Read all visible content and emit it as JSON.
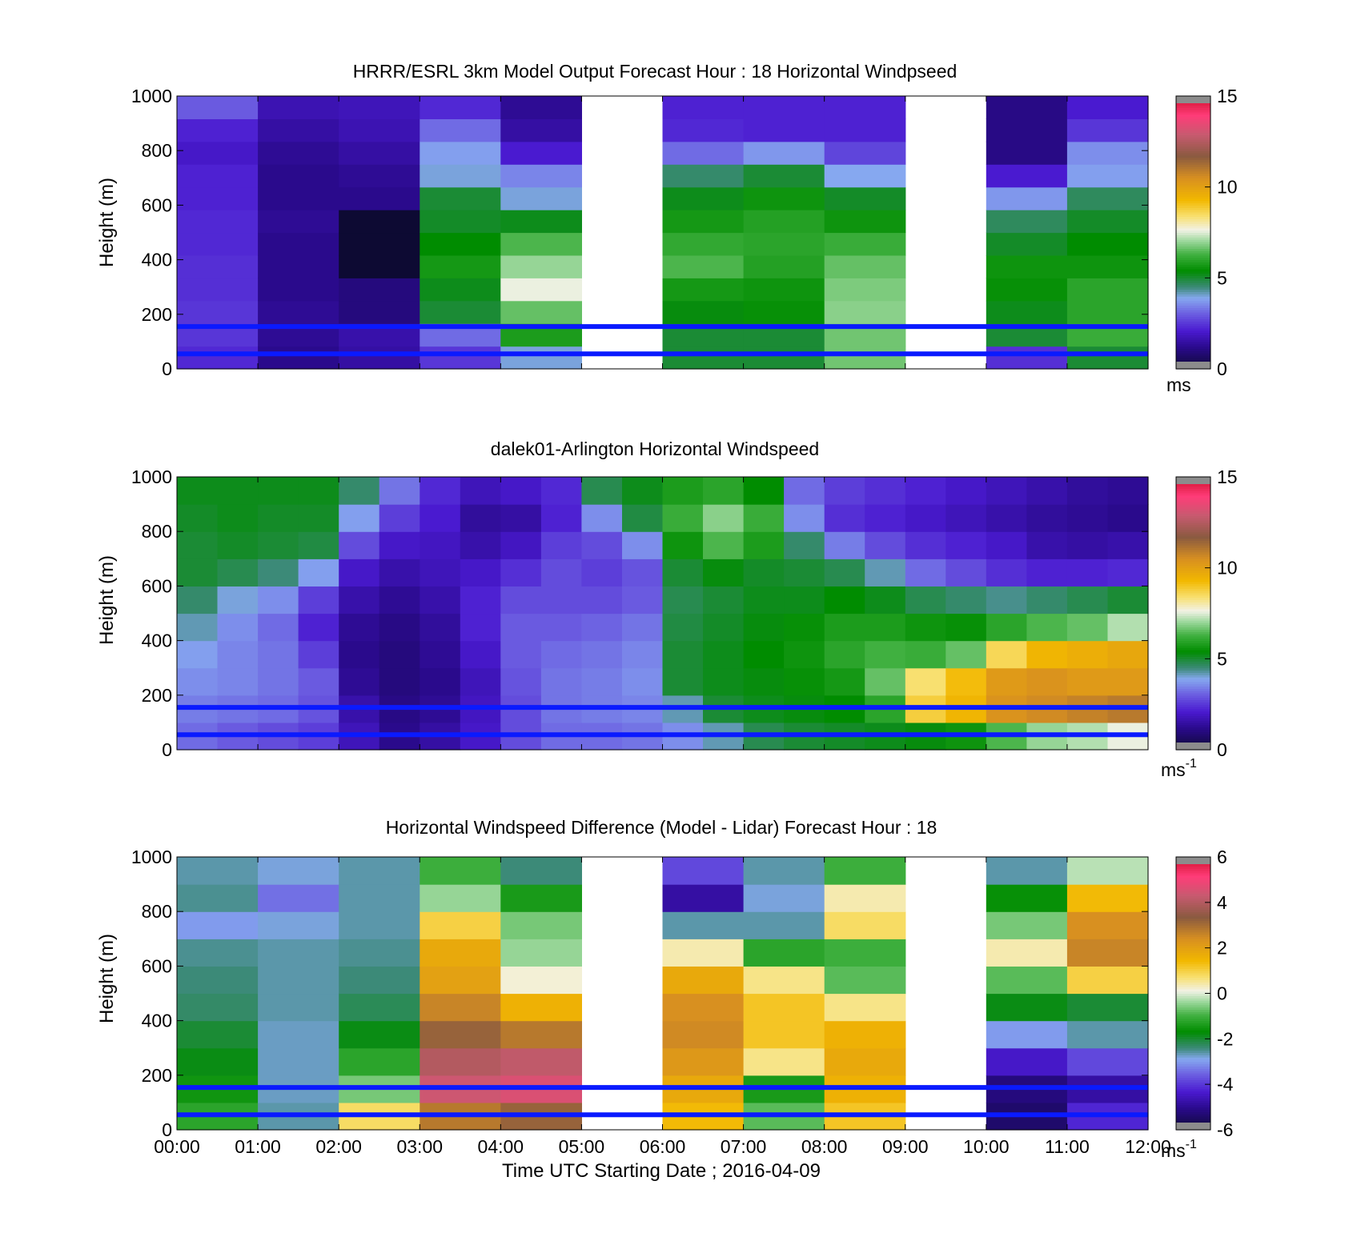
{
  "figure": {
    "xlabel": "Time UTC  Starting Date ; 2016-04-09",
    "x_ticks": [
      "00:00",
      "01:00",
      "02:00",
      "03:00",
      "04:00",
      "05:00",
      "06:00",
      "07:00",
      "08:00",
      "09:00",
      "10:00",
      "11:00",
      "12:00"
    ]
  },
  "chart_data": [
    {
      "type": "heatmap",
      "title": "HRRR/ESRL 3km Model Output   Forecast Hour : 18 Horizontal Windpseed",
      "ylabel": "Height (m)",
      "ylim": [
        0,
        1000
      ],
      "y_ticks": [
        "0",
        "200",
        "400",
        "600",
        "800",
        "1000"
      ],
      "xlim_hours": [
        0,
        12
      ],
      "colorbar": {
        "min": 0,
        "max": 15,
        "ticks": [
          "0",
          "5",
          "10",
          "15"
        ],
        "unit_label": "ms",
        "unit_sup": ""
      },
      "reference_lines_m": [
        55,
        155
      ],
      "missing_hours": [
        5,
        9
      ],
      "columns": [
        {
          "time": "00:00",
          "values": [
            2.3,
            2.5,
            2.5,
            2.4,
            2.4,
            2.3,
            2.3,
            2.2,
            2.2,
            2.0,
            2.2,
            3.0
          ]
        },
        {
          "time": "01:00",
          "values": [
            1.2,
            1.3,
            1.3,
            1.2,
            1.2,
            1.2,
            1.3,
            1.2,
            1.2,
            1.3,
            1.5,
            1.7
          ]
        },
        {
          "time": "02:00",
          "values": [
            1.5,
            1.6,
            1.0,
            1.0,
            0.0,
            0.0,
            0.0,
            1.2,
            1.3,
            1.5,
            1.7,
            1.8
          ]
        },
        {
          "time": "03:00",
          "values": [
            2.5,
            3.2,
            5.0,
            5.2,
            5.7,
            5.4,
            5.1,
            5.0,
            4.0,
            3.8,
            3.2,
            2.3
          ]
        },
        {
          "time": "04:00",
          "values": [
            4.0,
            5.8,
            6.6,
            7.6,
            7.0,
            6.4,
            5.2,
            4.0,
            3.5,
            2.1,
            1.5,
            1.3
          ]
        },
        {
          "time": "06:00",
          "values": [
            5.0,
            5.0,
            5.3,
            5.7,
            6.4,
            6.1,
            5.7,
            5.2,
            4.6,
            3.2,
            2.3,
            2.2
          ]
        },
        {
          "time": "07:00",
          "values": [
            5.0,
            5.0,
            5.5,
            5.6,
            5.9,
            6.0,
            5.9,
            5.6,
            5.0,
            3.7,
            2.2,
            2.2
          ]
        },
        {
          "time": "08:00",
          "values": [
            6.7,
            6.7,
            6.9,
            6.8,
            6.6,
            6.2,
            5.6,
            5.1,
            3.9,
            2.7,
            2.2,
            2.2
          ]
        },
        {
          "time": "10:00",
          "values": [
            2.4,
            5.0,
            5.2,
            5.5,
            5.6,
            5.1,
            4.7,
            3.7,
            2.1,
            1.1,
            1.1,
            1.1
          ]
        },
        {
          "time": "11:00",
          "values": [
            5.0,
            6.2,
            6.0,
            6.0,
            5.6,
            5.4,
            5.1,
            4.7,
            3.8,
            3.6,
            2.5,
            2.1
          ]
        }
      ]
    },
    {
      "type": "heatmap",
      "title": "dalek01-Arlington  Horizontal Windspeed",
      "ylabel": "Height (m)",
      "ylim": [
        0,
        1000
      ],
      "y_ticks": [
        "0",
        "200",
        "400",
        "600",
        "800",
        "1000"
      ],
      "xlim_hours": [
        0,
        12
      ],
      "colorbar": {
        "min": 0,
        "max": 15,
        "ticks": [
          "0",
          "5",
          "10",
          "15"
        ],
        "unit_label": "ms",
        "unit_sup": "-1"
      },
      "reference_lines_m": [
        55,
        155
      ],
      "columns": [
        {
          "time": "00:00",
          "values": [
            3.2,
            3.4,
            3.6,
            3.8,
            4.2,
            4.6,
            5.0,
            5.0,
            5.1,
            5.2
          ]
        },
        {
          "time": "00:30",
          "values": [
            3.0,
            3.3,
            3.5,
            3.5,
            3.6,
            4.0,
            4.8,
            5.1,
            5.2,
            5.2
          ]
        },
        {
          "time": "01:00",
          "values": [
            2.8,
            3.2,
            3.3,
            3.3,
            3.2,
            3.6,
            4.5,
            5.0,
            5.1,
            5.2
          ]
        },
        {
          "time": "01:30",
          "values": [
            2.6,
            2.9,
            3.0,
            2.6,
            2.2,
            2.6,
            3.8,
            4.9,
            5.1,
            5.2
          ]
        },
        {
          "time": "02:00",
          "values": [
            1.8,
            1.6,
            1.3,
            1.2,
            1.3,
            1.6,
            2.0,
            2.8,
            3.8,
            4.6
          ]
        },
        {
          "time": "02:30",
          "values": [
            1.2,
            1.1,
            1.0,
            1.0,
            1.1,
            1.3,
            1.6,
            2.0,
            2.6,
            3.3
          ]
        },
        {
          "time": "03:00",
          "values": [
            1.5,
            1.3,
            1.2,
            1.3,
            1.4,
            1.6,
            1.8,
            1.9,
            2.1,
            2.3
          ]
        },
        {
          "time": "03:30",
          "values": [
            2.0,
            1.9,
            1.8,
            2.0,
            2.2,
            2.2,
            2.0,
            1.6,
            1.4,
            1.8
          ]
        },
        {
          "time": "04:00",
          "values": [
            2.8,
            2.8,
            2.9,
            3.0,
            3.0,
            2.8,
            2.4,
            1.9,
            1.5,
            2.0
          ]
        },
        {
          "time": "04:30",
          "values": [
            3.2,
            3.3,
            3.3,
            3.2,
            3.0,
            2.8,
            2.8,
            2.6,
            2.2,
            2.3
          ]
        },
        {
          "time": "05:00",
          "values": [
            3.2,
            3.4,
            3.4,
            3.3,
            3.1,
            2.8,
            2.6,
            2.8,
            3.6,
            4.8
          ]
        },
        {
          "time": "05:30",
          "values": [
            3.3,
            3.5,
            3.6,
            3.5,
            3.3,
            3.0,
            2.9,
            3.6,
            4.9,
            5.2
          ]
        },
        {
          "time": "06:00",
          "values": [
            3.6,
            4.2,
            5.0,
            5.0,
            4.9,
            4.8,
            5.0,
            5.6,
            6.2,
            5.8
          ]
        },
        {
          "time": "06:30",
          "values": [
            4.2,
            5.0,
            5.2,
            5.2,
            5.1,
            5.0,
            5.3,
            6.4,
            6.9,
            6.0
          ]
        },
        {
          "time": "07:00",
          "values": [
            4.8,
            5.2,
            5.3,
            5.4,
            5.3,
            5.2,
            5.1,
            5.8,
            6.2,
            5.4
          ]
        },
        {
          "time": "07:30",
          "values": [
            5.0,
            5.3,
            5.5,
            5.6,
            5.5,
            5.2,
            5.0,
            4.6,
            3.6,
            3.2
          ]
        },
        {
          "time": "08:00",
          "values": [
            5.1,
            5.4,
            5.7,
            6.0,
            5.8,
            5.4,
            4.8,
            3.4,
            2.4,
            2.6
          ]
        },
        {
          "time": "08:30",
          "values": [
            5.2,
            6.0,
            6.6,
            6.3,
            5.8,
            5.2,
            4.2,
            2.8,
            2.2,
            2.4
          ]
        },
        {
          "time": "09:00",
          "values": [
            5.3,
            8.8,
            8.4,
            6.2,
            5.6,
            4.8,
            3.2,
            2.4,
            2.0,
            2.2
          ]
        },
        {
          "time": "09:30",
          "values": [
            5.6,
            9.4,
            9.2,
            6.6,
            5.5,
            4.6,
            2.8,
            2.2,
            1.8,
            2.0
          ]
        },
        {
          "time": "10:00",
          "values": [
            6.4,
            10.4,
            10.2,
            8.6,
            6.0,
            4.4,
            2.4,
            2.0,
            1.6,
            1.8
          ]
        },
        {
          "time": "10:30",
          "values": [
            7.0,
            10.6,
            10.4,
            9.4,
            6.4,
            4.6,
            2.2,
            1.6,
            1.4,
            1.6
          ]
        },
        {
          "time": "11:00",
          "values": [
            7.2,
            10.8,
            10.2,
            9.6,
            6.6,
            4.8,
            2.2,
            1.5,
            1.3,
            1.4
          ]
        },
        {
          "time": "11:30",
          "values": [
            7.6,
            11.0,
            10.2,
            9.8,
            7.2,
            5.0,
            2.3,
            1.6,
            1.2,
            1.3
          ]
        }
      ]
    },
    {
      "type": "heatmap",
      "title": "Horizontal Windspeed Difference (Model - Lidar) Forecast Hour : 18",
      "ylabel": "Height (m)",
      "ylim": [
        0,
        1000
      ],
      "y_ticks": [
        "0",
        "200",
        "400",
        "600",
        "800",
        "1000"
      ],
      "xlim_hours": [
        0,
        12
      ],
      "colorbar": {
        "min": -6,
        "max": 6,
        "ticks": [
          "-6",
          "-4",
          "-2",
          "0",
          "2",
          "4",
          "6"
        ],
        "unit_label": "ms",
        "unit_sup": "-1"
      },
      "reference_lines_m": [
        55,
        155
      ],
      "missing_hours": [
        5,
        9
      ],
      "columns": [
        {
          "time": "00:00",
          "values": [
            -1.2,
            -1.5,
            -1.8,
            -2.0,
            -2.3,
            -2.4,
            -2.5,
            -3.0,
            -2.5,
            -2.6
          ]
        },
        {
          "time": "01:00",
          "values": [
            -2.6,
            -2.7,
            -2.7,
            -2.7,
            -2.6,
            -2.6,
            -2.6,
            -2.8,
            -3.4,
            -2.8
          ]
        },
        {
          "time": "02:00",
          "values": [
            0.8,
            -0.6,
            -1.2,
            -1.8,
            -2.2,
            -2.4,
            -2.5,
            -2.6,
            -2.6,
            -2.6
          ]
        },
        {
          "time": "03:00",
          "values": [
            2.8,
            4.4,
            4.0,
            3.2,
            2.6,
            2.0,
            1.8,
            1.0,
            -0.4,
            -1.0
          ]
        },
        {
          "time": "04:00",
          "values": [
            3.2,
            4.6,
            4.2,
            2.8,
            1.6,
            0.2,
            -0.4,
            -0.6,
            -1.4,
            -2.4
          ]
        },
        {
          "time": "06:00",
          "values": [
            1.4,
            1.8,
            2.2,
            2.5,
            2.4,
            1.8,
            0.4,
            -2.6,
            -4.8,
            -3.8
          ]
        },
        {
          "time": "07:00",
          "values": [
            -0.8,
            -1.4,
            0.6,
            1.2,
            1.2,
            0.6,
            -1.2,
            -2.6,
            -2.8,
            -2.6
          ]
        },
        {
          "time": "08:00",
          "values": [
            1.2,
            1.6,
            1.8,
            1.6,
            0.6,
            -0.8,
            -1.0,
            0.8,
            0.4,
            -1.0
          ]
        },
        {
          "time": "10:00",
          "values": [
            -5.4,
            -5.2,
            -4.4,
            -3.0,
            -1.8,
            -0.8,
            0.4,
            -0.6,
            -1.6,
            -2.6
          ]
        },
        {
          "time": "11:00",
          "values": [
            -4.2,
            -4.8,
            -3.8,
            -2.6,
            -2.0,
            1.0,
            2.6,
            2.4,
            1.4,
            -0.2
          ]
        }
      ]
    }
  ]
}
